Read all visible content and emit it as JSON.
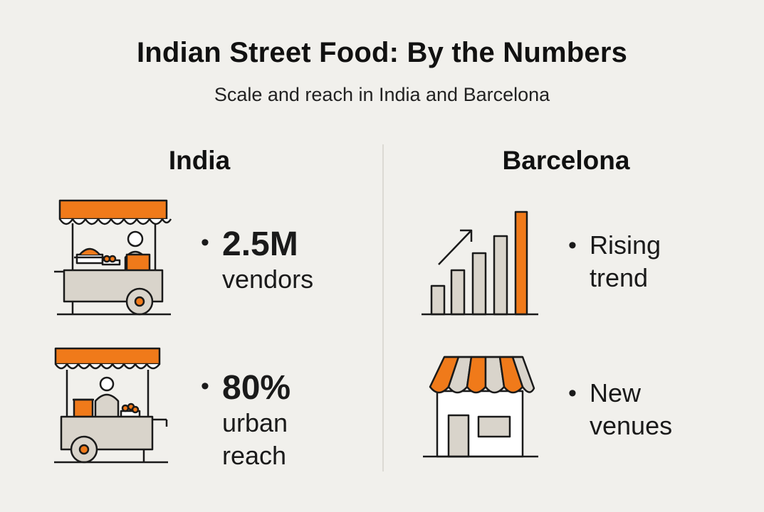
{
  "title": "Indian Street Food: By the Numbers",
  "subtitle": "Scale and reach in India and Barcelona",
  "colors": {
    "accent": "#f07a1a",
    "fill": "#d9d4cb",
    "stroke": "#1a1a1a",
    "background": "#f1f0ec"
  },
  "india": {
    "heading": "India",
    "stats": [
      {
        "icon": "food-cart-icon",
        "value": "2.5M",
        "label_lines": [
          "vendors"
        ]
      },
      {
        "icon": "food-cart-icon",
        "value": "80%",
        "label_lines": [
          "urban",
          "reach"
        ]
      }
    ]
  },
  "barcelona": {
    "heading": "Barcelona",
    "stats": [
      {
        "icon": "rising-bar-chart-icon",
        "label_lines": [
          "Rising",
          "trend"
        ]
      },
      {
        "icon": "storefront-icon",
        "label_lines": [
          "New",
          "venues"
        ]
      }
    ]
  }
}
